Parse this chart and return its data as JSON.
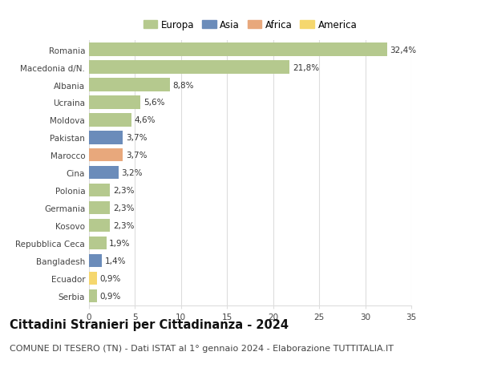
{
  "countries": [
    "Romania",
    "Macedonia d/N.",
    "Albania",
    "Ucraina",
    "Moldova",
    "Pakistan",
    "Marocco",
    "Cina",
    "Polonia",
    "Germania",
    "Kosovo",
    "Repubblica Ceca",
    "Bangladesh",
    "Ecuador",
    "Serbia"
  ],
  "values": [
    32.4,
    21.8,
    8.8,
    5.6,
    4.6,
    3.7,
    3.7,
    3.2,
    2.3,
    2.3,
    2.3,
    1.9,
    1.4,
    0.9,
    0.9
  ],
  "labels": [
    "32,4%",
    "21,8%",
    "8,8%",
    "5,6%",
    "4,6%",
    "3,7%",
    "3,7%",
    "3,2%",
    "2,3%",
    "2,3%",
    "2,3%",
    "1,9%",
    "1,4%",
    "0,9%",
    "0,9%"
  ],
  "continents": [
    "Europa",
    "Europa",
    "Europa",
    "Europa",
    "Europa",
    "Asia",
    "Africa",
    "Asia",
    "Europa",
    "Europa",
    "Europa",
    "Europa",
    "Asia",
    "America",
    "Europa"
  ],
  "continent_colors": {
    "Europa": "#b5c98e",
    "Asia": "#6b8cba",
    "Africa": "#e8a87c",
    "America": "#f5d76e"
  },
  "legend_order": [
    "Europa",
    "Asia",
    "Africa",
    "America"
  ],
  "background_color": "#ffffff",
  "grid_color": "#dddddd",
  "title": "Cittadini Stranieri per Cittadinanza - 2024",
  "subtitle": "COMUNE DI TESERO (TN) - Dati ISTAT al 1° gennaio 2024 - Elaborazione TUTTITALIA.IT",
  "xlim": [
    0,
    35
  ],
  "xticks": [
    0,
    5,
    10,
    15,
    20,
    25,
    30,
    35
  ],
  "bar_height": 0.75,
  "title_fontsize": 10.5,
  "subtitle_fontsize": 8,
  "label_fontsize": 7.5,
  "tick_fontsize": 7.5,
  "legend_fontsize": 8.5
}
